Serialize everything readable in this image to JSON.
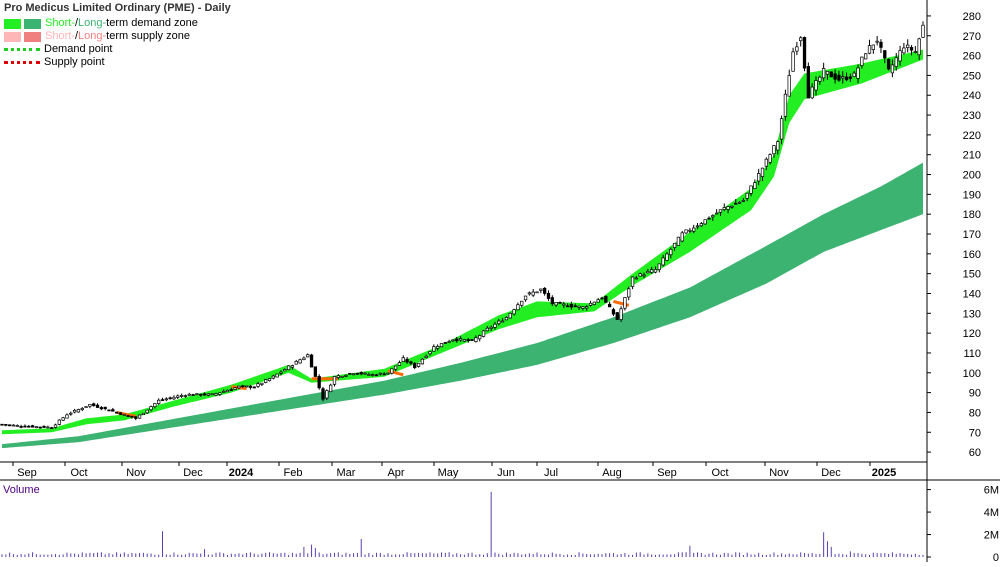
{
  "chart_data": {
    "type": "candlestick",
    "title": "Pro Medicus Limited Ordinary (PME) - Daily",
    "x_labels": [
      "Sep",
      "Oct",
      "Nov",
      "Dec",
      "2024",
      "Feb",
      "Mar",
      "Apr",
      "May",
      "Jun",
      "Jul",
      "Aug",
      "Sep",
      "Oct",
      "Nov",
      "Dec",
      "2025"
    ],
    "y_ticks": [
      60,
      70,
      80,
      90,
      100,
      110,
      120,
      130,
      140,
      150,
      160,
      170,
      180,
      190,
      200,
      210,
      220,
      230,
      240,
      250,
      260,
      270,
      280
    ],
    "ylim": [
      55,
      284
    ],
    "price_path": [
      [
        0,
        74
      ],
      [
        6,
        73
      ],
      [
        13,
        72.5
      ],
      [
        17,
        79
      ],
      [
        23,
        84
      ],
      [
        30,
        80
      ],
      [
        35,
        77
      ],
      [
        41,
        86
      ],
      [
        48,
        89
      ],
      [
        55,
        89
      ],
      [
        62,
        93
      ],
      [
        66,
        93
      ],
      [
        71,
        98
      ],
      [
        75,
        103
      ],
      [
        80,
        109
      ],
      [
        84,
        87
      ],
      [
        87,
        98
      ],
      [
        92,
        100
      ],
      [
        97,
        99
      ],
      [
        101,
        100
      ],
      [
        105,
        107
      ],
      [
        108,
        103
      ],
      [
        113,
        113
      ],
      [
        118,
        117
      ],
      [
        123,
        116
      ],
      [
        127,
        122
      ],
      [
        132,
        128
      ],
      [
        137,
        139
      ],
      [
        141,
        142
      ],
      [
        144,
        135
      ],
      [
        152,
        133
      ],
      [
        157,
        138
      ],
      [
        161,
        127
      ],
      [
        165,
        148
      ],
      [
        171,
        152
      ],
      [
        178,
        170
      ],
      [
        184,
        177
      ],
      [
        189,
        183
      ],
      [
        194,
        187
      ],
      [
        198,
        200
      ],
      [
        203,
        217
      ],
      [
        207,
        262
      ],
      [
        209,
        270
      ],
      [
        211,
        240
      ],
      [
        215,
        252
      ],
      [
        219,
        248
      ],
      [
        223,
        250
      ],
      [
        226,
        262
      ],
      [
        229,
        268
      ],
      [
        232,
        252
      ],
      [
        236,
        265
      ],
      [
        239,
        262
      ],
      [
        241,
        275
      ]
    ],
    "demand_zone_short": {
      "upper": [
        [
          0,
          71
        ],
        [
          13,
          72
        ],
        [
          22,
          77
        ],
        [
          32,
          79
        ],
        [
          45,
          86
        ],
        [
          60,
          94
        ],
        [
          75,
          104
        ],
        [
          81,
          97
        ],
        [
          100,
          102
        ],
        [
          115,
          114
        ],
        [
          130,
          129
        ],
        [
          140,
          136
        ],
        [
          155,
          135
        ],
        [
          165,
          150
        ],
        [
          180,
          171
        ],
        [
          196,
          193
        ],
        [
          202,
          210
        ],
        [
          206,
          240
        ],
        [
          210,
          251
        ],
        [
          225,
          256
        ],
        [
          241,
          263
        ]
      ],
      "lower": [
        [
          0,
          69
        ],
        [
          13,
          70
        ],
        [
          22,
          74
        ],
        [
          32,
          76
        ],
        [
          45,
          83
        ],
        [
          60,
          90
        ],
        [
          75,
          100
        ],
        [
          81,
          95
        ],
        [
          100,
          98
        ],
        [
          115,
          110
        ],
        [
          130,
          122
        ],
        [
          140,
          128
        ],
        [
          155,
          131
        ],
        [
          165,
          144
        ],
        [
          180,
          161
        ],
        [
          196,
          182
        ],
        [
          202,
          199
        ],
        [
          206,
          226
        ],
        [
          210,
          238
        ],
        [
          225,
          246
        ],
        [
          241,
          258
        ]
      ]
    },
    "demand_zone_long": {
      "upper": [
        [
          0,
          64
        ],
        [
          20,
          68
        ],
        [
          40,
          75
        ],
        [
          60,
          82
        ],
        [
          80,
          89
        ],
        [
          100,
          96
        ],
        [
          120,
          105
        ],
        [
          140,
          115
        ],
        [
          160,
          128
        ],
        [
          180,
          143
        ],
        [
          200,
          164
        ],
        [
          215,
          180
        ],
        [
          230,
          194
        ],
        [
          241,
          206
        ]
      ],
      "lower": [
        [
          0,
          62
        ],
        [
          20,
          65
        ],
        [
          40,
          71
        ],
        [
          60,
          77
        ],
        [
          80,
          83
        ],
        [
          100,
          89
        ],
        [
          120,
          96
        ],
        [
          140,
          104
        ],
        [
          160,
          115
        ],
        [
          180,
          128
        ],
        [
          200,
          145
        ],
        [
          215,
          161
        ],
        [
          230,
          172
        ],
        [
          241,
          180
        ]
      ]
    },
    "supply_segments": [
      [
        [
          30,
          80
        ],
        [
          35,
          78
        ]
      ],
      [
        [
          60,
          93
        ],
        [
          64,
          92
        ]
      ],
      [
        [
          81,
          97
        ],
        [
          88,
          97
        ]
      ],
      [
        [
          101,
          101
        ],
        [
          105,
          99
        ]
      ],
      [
        [
          160,
          136
        ],
        [
          164,
          134
        ]
      ]
    ],
    "volume": {
      "label": "Volume",
      "y_ticks": [
        "6M",
        "4M",
        "2M",
        "0"
      ],
      "max": 6.5,
      "baseline": 0.18,
      "spikes": [
        [
          42,
          2.3
        ],
        [
          53,
          0.7
        ],
        [
          79,
          0.9
        ],
        [
          81,
          1.1
        ],
        [
          82,
          0.8
        ],
        [
          94,
          1.6
        ],
        [
          128,
          5.8
        ],
        [
          180,
          1.0
        ],
        [
          215,
          2.2
        ],
        [
          216,
          1.4
        ],
        [
          217,
          0.9
        ],
        [
          222,
          0.5
        ]
      ]
    }
  },
  "legend": {
    "demand_prefix": "Short-",
    "demand_mid": " / ",
    "demand_long": "Long-",
    "demand_suffix": "term demand zone",
    "supply_prefix": "Short-",
    "supply_mid": " / ",
    "supply_long": "Long-",
    "supply_suffix": "term supply zone",
    "demand_point": "Demand point",
    "supply_point": "Supply point"
  },
  "colors": {
    "short_demand": "#22ee22",
    "long_demand": "#3cb371",
    "short_supply": "#ffb6b6",
    "long_supply": "#f08080",
    "supply_line": "#ff6a00",
    "demand_dots": "#22cc22",
    "supply_dots": "#dd0000",
    "volume_label": "#4b0082",
    "volume_bar": "#5a40b0"
  }
}
